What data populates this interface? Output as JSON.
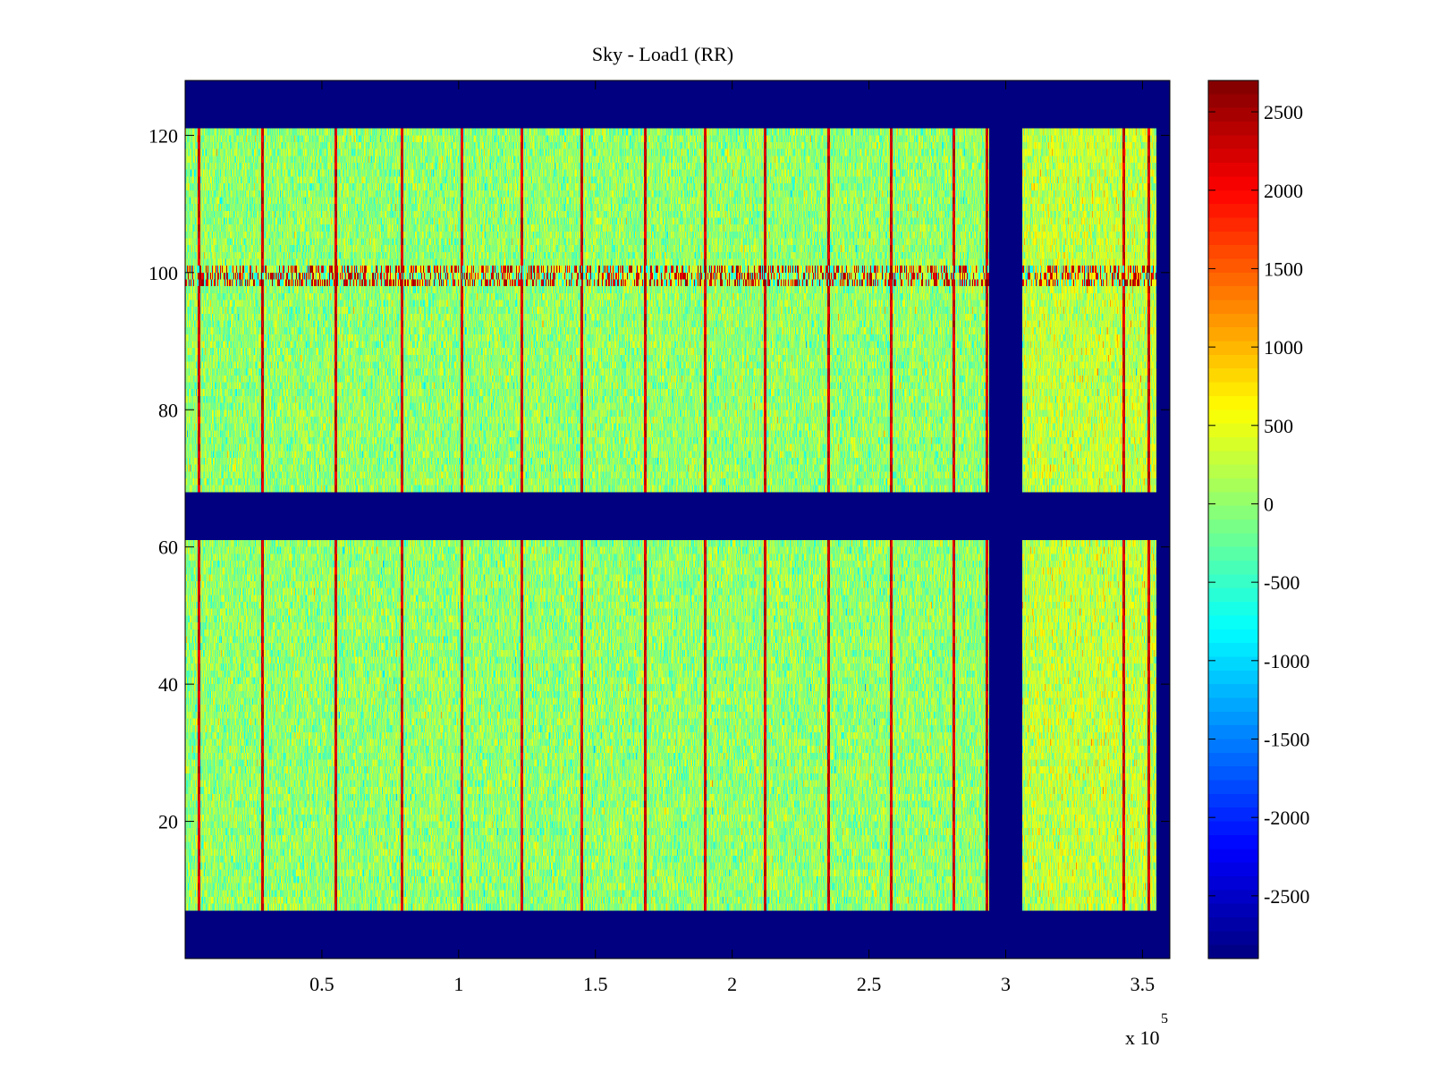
{
  "chart_data": {
    "type": "heatmap",
    "title": "Sky - Load1 (RR)",
    "xlabel": "",
    "ylabel": "",
    "xlim": [
      0,
      360000
    ],
    "ylim": [
      0,
      128
    ],
    "x_ticks": [
      50000,
      100000,
      150000,
      200000,
      250000,
      300000,
      350000
    ],
    "x_tick_labels": [
      "0.5",
      "1",
      "1.5",
      "2",
      "2.5",
      "3",
      "3.5"
    ],
    "x_exponent_label": "x 10",
    "x_exponent_power": "5",
    "y_ticks": [
      20,
      40,
      60,
      80,
      100,
      120
    ],
    "y_tick_labels": [
      "20",
      "40",
      "60",
      "80",
      "100",
      "120"
    ],
    "colormap": "jet",
    "colorbar": {
      "limits": [
        -2900,
        2700
      ],
      "ticks": [
        2500,
        2000,
        1500,
        1000,
        500,
        0,
        -500,
        -1000,
        -1500,
        -2000,
        -2500
      ],
      "tick_labels": [
        "2500",
        "2000",
        "1500",
        "1000",
        "500",
        "0",
        "-500",
        "-1000",
        "-1500",
        "-2000",
        "-2500"
      ]
    },
    "background_value": -2900,
    "data_rows_y": [
      [
        7,
        61
      ],
      [
        68,
        121
      ]
    ],
    "data_extent_x": [
      0,
      355000
    ],
    "gap_x": [
      294000,
      306000
    ],
    "spike_columns_x": [
      5000,
      28000,
      55000,
      79000,
      101000,
      123000,
      145000,
      168000,
      190000,
      212000,
      235000,
      258000,
      281000,
      293000,
      343000,
      352000
    ],
    "rfi_row_y": 99.5,
    "rfi_row_x_extent": [
      0,
      355000
    ],
    "noise_mean": 0,
    "noise_spread": 300
  }
}
